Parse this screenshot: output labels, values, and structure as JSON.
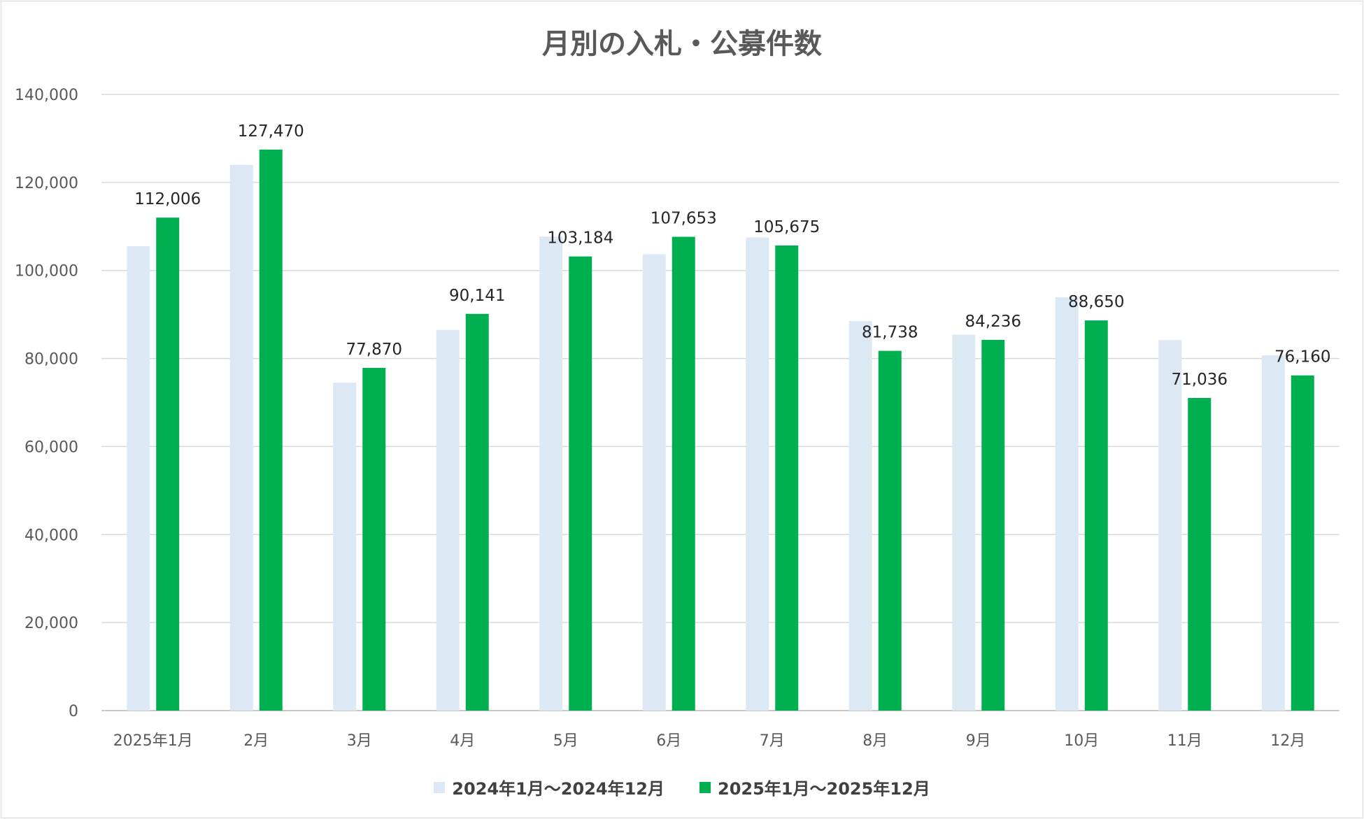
{
  "chart_data": {
    "type": "bar",
    "title": "月別の入札・公募件数",
    "categories": [
      "2025年1月",
      "2月",
      "3月",
      "4月",
      "5月",
      "6月",
      "7月",
      "8月",
      "9月",
      "10月",
      "11月",
      "12月"
    ],
    "series": [
      {
        "name": "2024年1月～2024年12月",
        "color": "#dde8f5",
        "values": [
          105500,
          124000,
          74500,
          86500,
          107700,
          103700,
          107500,
          88500,
          85400,
          93900,
          84200,
          80700
        ],
        "labels_shown": false
      },
      {
        "name": "2025年1月～2025年12月",
        "color": "#00b050",
        "values": [
          112006,
          127470,
          77870,
          90141,
          103184,
          107653,
          105675,
          81738,
          84236,
          88650,
          71036,
          76160
        ],
        "labels_shown": true,
        "labels": [
          "112,006",
          "127,470",
          "77,870",
          "90,141",
          "103,184",
          "107,653",
          "105,675",
          "81,738",
          "84,236",
          "88,650",
          "71,036",
          "76,160"
        ]
      }
    ],
    "ylim": [
      0,
      140000
    ],
    "yticks": [
      0,
      20000,
      40000,
      60000,
      80000,
      100000,
      120000,
      140000
    ],
    "ytick_labels": [
      "0",
      "20,000",
      "40,000",
      "60,000",
      "80,000",
      "100,000",
      "120,000",
      "140,000"
    ],
    "grid": true,
    "legend_position": "bottom"
  }
}
